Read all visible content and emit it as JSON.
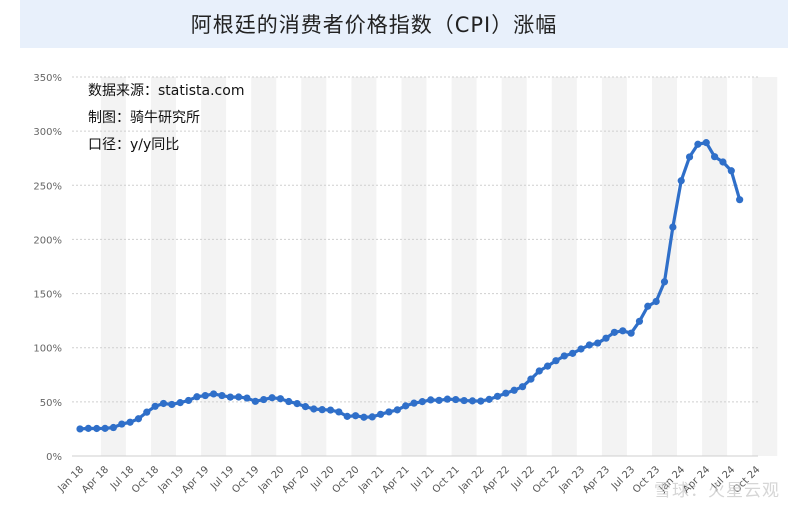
{
  "title": "阿根廷的消费者价格指数（CPI）涨幅",
  "notes": [
    "数据来源：statista.com",
    "制图：骑牛研究所",
    "口径：y/y同比"
  ],
  "watermark": "雪球：火星云观",
  "colors": {
    "line": "#2f6fc9",
    "band": "#f3f3f3",
    "grid": "#cfcfcf",
    "title_bg": "#e8f0fb"
  },
  "chart_data": {
    "type": "line",
    "title": "阿根廷的消费者价格指数（CPI）涨幅",
    "ylim": [
      0,
      350
    ],
    "yticks": [
      0,
      50,
      100,
      150,
      200,
      250,
      300,
      350
    ],
    "ytick_labels": [
      "0%",
      "50%",
      "100%",
      "150%",
      "200%",
      "250%",
      "300%",
      "350%"
    ],
    "xtick_labels": [
      "Jan 18",
      "Apr 18",
      "Jul 18",
      "Oct 18",
      "Jan 19",
      "Apr 19",
      "Jul 19",
      "Oct 19",
      "Jan 20",
      "Apr 20",
      "Jul 20",
      "Oct 20",
      "Jan 21",
      "Apr 21",
      "Jul 21",
      "Oct 21",
      "Jan 22",
      "Apr 22",
      "Jul 22",
      "Oct 22",
      "Jan 23",
      "Apr 23",
      "Jul 23",
      "Oct 23",
      "Jan 24",
      "Apr 24",
      "Jul 24",
      "Oct 24"
    ],
    "grid": true,
    "legend": "none",
    "series": [
      {
        "x": [
          "2018-01",
          "2018-02",
          "2018-03",
          "2018-04",
          "2018-05",
          "2018-06",
          "2018-07",
          "2018-08",
          "2018-09",
          "2018-10",
          "2018-11",
          "2018-12",
          "2019-01",
          "2019-02",
          "2019-03",
          "2019-04",
          "2019-05",
          "2019-06",
          "2019-07",
          "2019-08",
          "2019-09",
          "2019-10",
          "2019-11",
          "2019-12",
          "2020-01",
          "2020-02",
          "2020-03",
          "2020-04",
          "2020-05",
          "2020-06",
          "2020-07",
          "2020-08",
          "2020-09",
          "2020-10",
          "2020-11",
          "2020-12",
          "2021-01",
          "2021-02",
          "2021-03",
          "2021-04",
          "2021-05",
          "2021-06",
          "2021-07",
          "2021-08",
          "2021-09",
          "2021-10",
          "2021-11",
          "2021-12",
          "2022-01",
          "2022-02",
          "2022-03",
          "2022-04",
          "2022-05",
          "2022-06",
          "2022-07",
          "2022-08",
          "2022-09",
          "2022-10",
          "2022-11",
          "2022-12",
          "2023-01",
          "2023-02",
          "2023-03",
          "2023-04",
          "2023-05",
          "2023-06",
          "2023-07",
          "2023-08",
          "2023-09",
          "2023-10",
          "2023-11",
          "2023-12",
          "2024-01",
          "2024-02",
          "2024-03",
          "2024-04",
          "2024-05",
          "2024-06",
          "2024-07",
          "2024-08"
        ],
        "values": [
          25,
          25.5,
          25.4,
          25.5,
          26.3,
          29.5,
          31.2,
          34.4,
          40.5,
          45.9,
          48.5,
          47.6,
          49.3,
          51.3,
          54.7,
          55.8,
          57.3,
          55.8,
          54.4,
          54.5,
          53.5,
          50.5,
          52.1,
          53.8,
          52.9,
          50.3,
          48.4,
          45.6,
          43.4,
          42.8,
          42.4,
          40.7,
          36.6,
          37.2,
          35.8,
          36.1,
          38.5,
          40.7,
          42.6,
          46.3,
          48.8,
          50.2,
          51.8,
          51.4,
          52.5,
          52.1,
          51.2,
          50.9,
          50.7,
          52.3,
          55.1,
          58.0,
          60.7,
          64.0,
          71.0,
          78.5,
          83.0,
          88.0,
          92.4,
          94.8,
          98.8,
          102.5,
          104.3,
          108.8,
          114.2,
          115.6,
          113.4,
          124.4,
          138.3,
          142.7,
          160.9,
          211.4,
          254.2,
          276.2,
          287.9,
          289.4,
          276.4,
          271.5,
          263.4,
          236.7
        ]
      }
    ]
  }
}
